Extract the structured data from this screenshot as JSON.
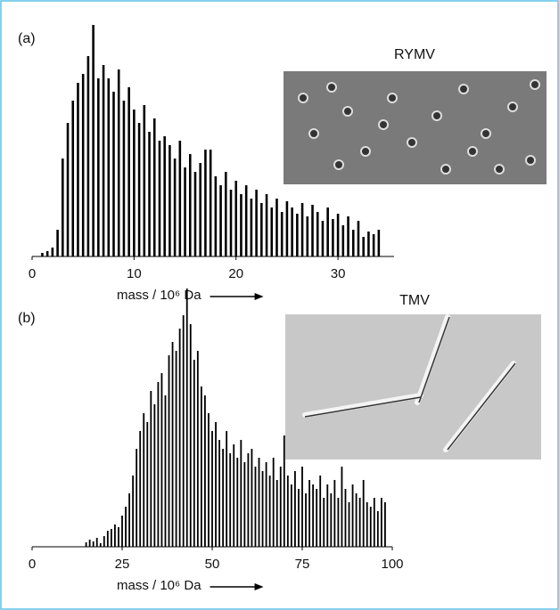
{
  "chart_data": [
    {
      "type": "histogram",
      "panel_label": "(a)",
      "image_label": "RYMV",
      "xlabel": "mass / 10⁶ Da",
      "color": "#000000",
      "bins": [
        0.75,
        1.25,
        1.75,
        2.25,
        2.75,
        3.25,
        3.75,
        4.25,
        4.75,
        5.25,
        5.75,
        6.25,
        6.75,
        7.25,
        7.75,
        8.25,
        8.75,
        9.25,
        9.75,
        10.25,
        10.75,
        11.25,
        11.75,
        12.25,
        12.75,
        13.25,
        13.75,
        14.25,
        14.75,
        15.25,
        15.75,
        16.25,
        16.75,
        17.25,
        17.75,
        18.25,
        18.75,
        19.25,
        19.75,
        20.25,
        20.75,
        21.25,
        21.75,
        22.25,
        22.75,
        23.25,
        23.75,
        24.25,
        24.75,
        25.25,
        25.75,
        26.25,
        26.75,
        27.25,
        27.75,
        28.25,
        28.75,
        29.25,
        29.75,
        30.25,
        30.75,
        31.25,
        31.75,
        32.25,
        32.75,
        33.25,
        33.75,
        34.25
      ],
      "values": [
        4,
        6,
        10,
        30,
        110,
        150,
        175,
        195,
        205,
        225,
        260,
        200,
        215,
        200,
        185,
        210,
        175,
        190,
        165,
        150,
        170,
        140,
        155,
        130,
        135,
        125,
        110,
        130,
        100,
        115,
        95,
        105,
        120,
        120,
        90,
        80,
        95,
        75,
        85,
        70,
        80,
        65,
        75,
        60,
        70,
        55,
        65,
        50,
        62,
        55,
        48,
        60,
        45,
        58,
        50,
        40,
        55,
        42,
        48,
        35,
        45,
        30,
        40,
        22,
        28,
        25,
        30
      ],
      "xlim": [
        0,
        35.5
      ],
      "xticks": [
        0,
        10,
        20,
        30
      ],
      "ylim": [
        0,
        260
      ]
    },
    {
      "type": "histogram",
      "panel_label": "(b)",
      "image_label": "TMV",
      "xlabel": "mass / 10⁶ Da",
      "color": "#000000",
      "bins": [
        14.5,
        15.5,
        16.5,
        17.5,
        18.5,
        19.5,
        20.5,
        21.5,
        22.5,
        23.5,
        24.5,
        25.5,
        26.5,
        27.5,
        28.5,
        29.5,
        30.5,
        31.5,
        32.5,
        33.5,
        34.5,
        35.5,
        36.5,
        37.5,
        38.5,
        39.5,
        40.5,
        41.5,
        42.5,
        43.5,
        44.5,
        45.5,
        46.5,
        47.5,
        48.5,
        49.5,
        50.5,
        51.5,
        52.5,
        53.5,
        54.5,
        55.5,
        56.5,
        57.5,
        58.5,
        59.5,
        60.5,
        61.5,
        62.5,
        63.5,
        64.5,
        65.5,
        66.5,
        67.5,
        68.5,
        69.5,
        70.5,
        71.5,
        72.5,
        73.5,
        74.5,
        75.5,
        76.5,
        77.5,
        78.5,
        79.5,
        80.5,
        81.5,
        82.5,
        83.5,
        84.5,
        85.5,
        86.5,
        87.5,
        88.5,
        89.5,
        90.5,
        91.5,
        92.5,
        93.5,
        94.5,
        95.5,
        96.5,
        97.5,
        98.5
      ],
      "values": [
        5,
        8,
        6,
        10,
        4,
        12,
        18,
        20,
        25,
        22,
        35,
        45,
        60,
        80,
        110,
        130,
        150,
        140,
        175,
        160,
        185,
        195,
        170,
        215,
        230,
        220,
        245,
        260,
        290,
        250,
        210,
        220,
        180,
        170,
        150,
        130,
        140,
        120,
        110,
        130,
        105,
        115,
        100,
        120,
        95,
        105,
        110,
        90,
        100,
        85,
        95,
        80,
        100,
        75,
        90,
        125,
        80,
        70,
        85,
        65,
        90,
        60,
        75,
        70,
        65,
        80,
        55,
        70,
        60,
        75,
        55,
        90,
        65,
        50,
        70,
        60,
        55,
        75,
        50,
        45,
        55,
        40,
        55,
        50
      ],
      "xlim": [
        0,
        100
      ],
      "xticks": [
        0,
        25,
        50,
        75,
        100
      ],
      "ylim": [
        0,
        290
      ]
    }
  ]
}
